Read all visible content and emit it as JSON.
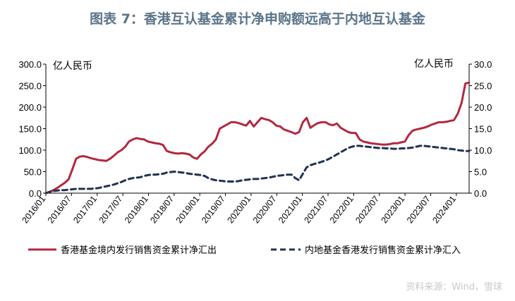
{
  "colors": {
    "title": "#5a7489",
    "series_outflow": "#b3283f",
    "series_inflow": "#1f3350",
    "axis": "#000000",
    "watermark": "#c8c8c8"
  },
  "page": {
    "title": "图表 7：香港互认基金累计净申购额远高于内地互认基金",
    "source": "资料来源：Wind，雪球"
  },
  "chart_data": {
    "type": "line",
    "title": "图表 7：香港互认基金累计净申购额远高于内地互认基金",
    "left_unit": "亿人民币",
    "right_unit": "亿人民币",
    "y_left": {
      "min": 0,
      "max": 300,
      "ticks": [
        "0.0",
        "50.0",
        "100.0",
        "150.0",
        "200.0",
        "250.0",
        "300.0"
      ]
    },
    "y_right": {
      "min": 0,
      "max": 30,
      "ticks": [
        "0.0",
        "5.0",
        "10.0",
        "15.0",
        "20.0",
        "25.0",
        "30.0"
      ]
    },
    "x_labels": [
      "2016/01",
      "2016/07",
      "2017/01",
      "2017/07",
      "2018/01",
      "2018/07",
      "2019/01",
      "2019/07",
      "2020/01",
      "2020/07",
      "2021/01",
      "2021/07",
      "2022/01",
      "2022/07",
      "2023/01",
      "2023/07",
      "2024/01"
    ],
    "x_start": "2016/01",
    "x_end": "2024/04",
    "legend_position": "bottom",
    "series": [
      {
        "name": "香港基金境内发行销售资金累计净汇出",
        "axis": "left",
        "style": "solid",
        "values": [
          0,
          3,
          7,
          12,
          18,
          24,
          32,
          55,
          80,
          85,
          86,
          84,
          81,
          79,
          77,
          76,
          75,
          80,
          87,
          95,
          100,
          108,
          120,
          125,
          128,
          126,
          125,
          120,
          118,
          116,
          115,
          112,
          98,
          95,
          93,
          92,
          93,
          92,
          90,
          83,
          80,
          90,
          97,
          108,
          115,
          125,
          150,
          155,
          160,
          165,
          165,
          163,
          160,
          157,
          168,
          155,
          165,
          175,
          172,
          170,
          165,
          157,
          155,
          148,
          145,
          142,
          138,
          142,
          165,
          175,
          152,
          158,
          163,
          165,
          165,
          160,
          158,
          162,
          152,
          147,
          142,
          140,
          140,
          125,
          120,
          118,
          116,
          115,
          114,
          113,
          113,
          114,
          116,
          116,
          118,
          120,
          135,
          145,
          148,
          150,
          152,
          155,
          159,
          162,
          165,
          165,
          166,
          168,
          170,
          185,
          210,
          255,
          257
        ]
      },
      {
        "name": "内地基金香港发行销售资金累计净汇入",
        "axis": "right",
        "style": "dashed",
        "values": [
          0.0,
          0.3,
          0.5,
          0.6,
          0.7,
          0.7,
          0.8,
          0.9,
          1.0,
          1.0,
          1.0,
          1.0,
          1.0,
          1.1,
          1.2,
          1.4,
          1.6,
          1.8,
          2.0,
          2.3,
          2.6,
          3.0,
          3.3,
          3.5,
          3.6,
          3.7,
          4.0,
          4.2,
          4.3,
          4.3,
          4.4,
          4.5,
          4.8,
          4.9,
          5.0,
          4.9,
          4.8,
          4.7,
          4.5,
          4.4,
          4.3,
          4.2,
          4.0,
          3.5,
          3.2,
          3.0,
          2.9,
          2.8,
          2.7,
          2.7,
          2.7,
          2.8,
          3.0,
          3.1,
          3.2,
          3.3,
          3.3,
          3.4,
          3.5,
          3.6,
          3.8,
          4.0,
          4.1,
          4.2,
          4.3,
          4.3,
          3.5,
          3.0,
          4.5,
          6.0,
          6.5,
          6.8,
          7.0,
          7.3,
          7.6,
          8.0,
          8.5,
          9.0,
          9.5,
          10.0,
          10.5,
          10.8,
          11.0,
          11.0,
          10.9,
          10.8,
          10.7,
          10.6,
          10.5,
          10.5,
          10.4,
          10.4,
          10.3,
          10.3,
          10.4,
          10.4,
          10.5,
          10.6,
          10.8,
          11.0,
          11.0,
          10.9,
          10.8,
          10.7,
          10.6,
          10.5,
          10.4,
          10.3,
          10.2,
          10.0,
          9.9,
          9.8,
          9.8
        ]
      }
    ]
  }
}
